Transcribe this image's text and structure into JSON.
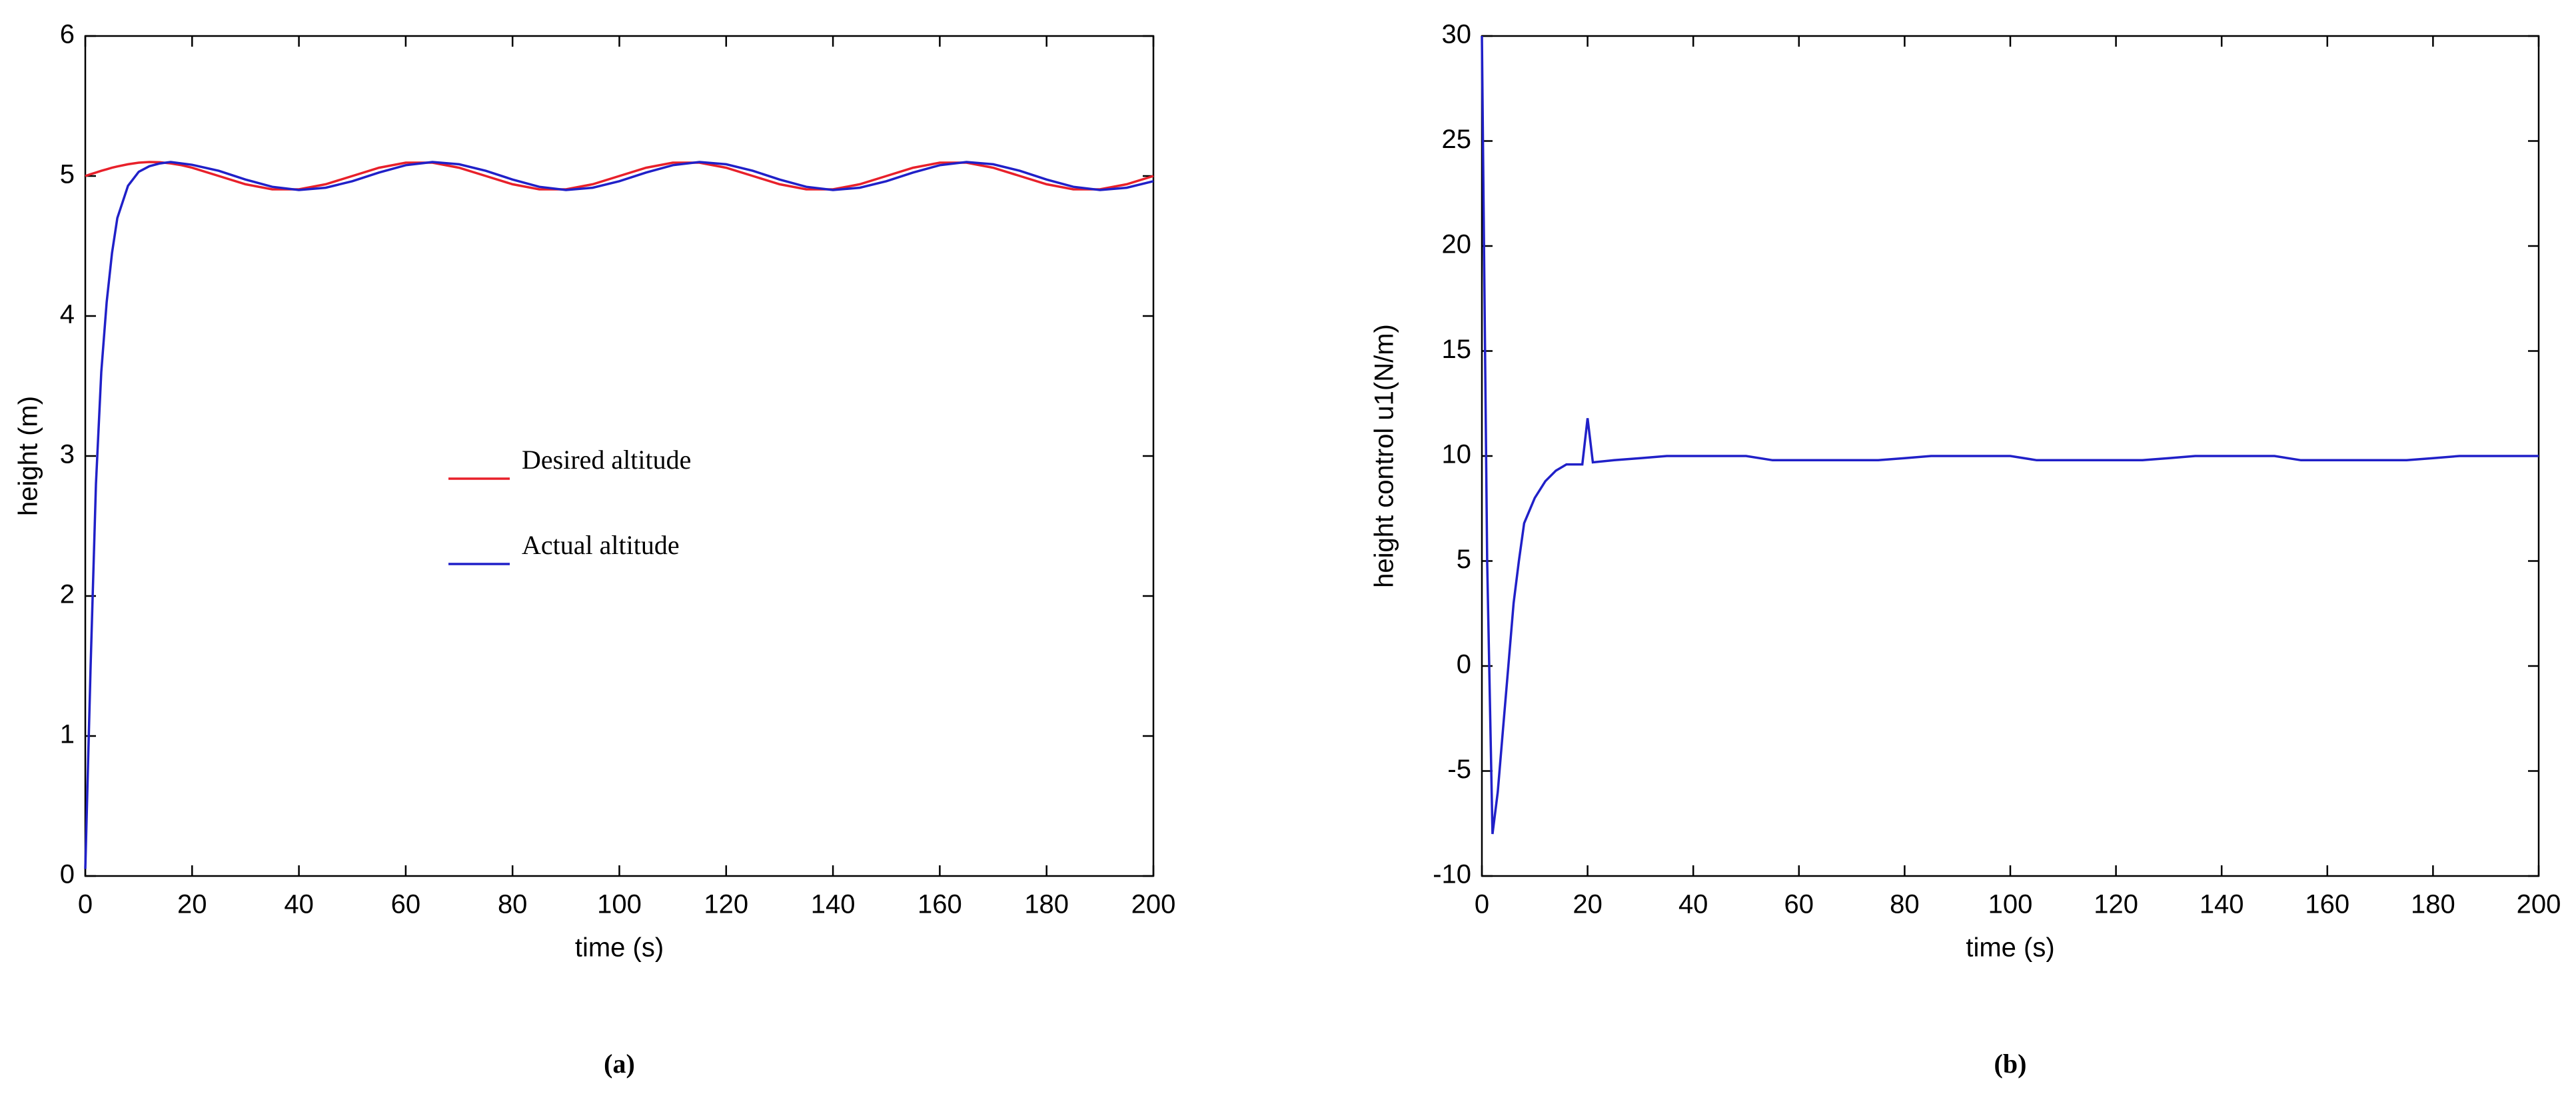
{
  "chart_data": [
    {
      "type": "line",
      "caption": "(a)",
      "xlabel": "time (s)",
      "ylabel": "height (m)",
      "x": [
        0,
        1,
        2,
        3,
        4,
        5,
        6,
        8,
        10,
        12,
        14,
        16,
        18,
        20,
        25,
        30,
        35,
        40,
        45,
        50,
        55,
        60,
        65,
        70,
        75,
        80,
        85,
        90,
        95,
        100,
        105,
        110,
        115,
        120,
        125,
        130,
        135,
        140,
        145,
        150,
        155,
        160,
        165,
        170,
        175,
        180,
        185,
        190,
        195,
        200
      ],
      "series": [
        {
          "name": "Desired altitude",
          "color": "#e8202a",
          "values": [
            5,
            5.013,
            5.025,
            5.037,
            5.048,
            5.059,
            5.068,
            5.084,
            5.095,
            5.1,
            5.098,
            5.09,
            5.077,
            5.059,
            5,
            4.941,
            4.905,
            4.905,
            4.941,
            5,
            5.059,
            5.095,
            5.095,
            5.059,
            5,
            4.941,
            4.905,
            4.905,
            4.941,
            5,
            5.059,
            5.095,
            5.095,
            5.059,
            5,
            4.941,
            4.905,
            4.905,
            4.941,
            5,
            5.059,
            5.095,
            5.095,
            5.059,
            5,
            4.941,
            4.905,
            4.905,
            4.941,
            5
          ]
        },
        {
          "name": "Actual altitude",
          "color": "#2020c8",
          "values": [
            0.05,
            1.5,
            2.8,
            3.6,
            4.1,
            4.45,
            4.7,
            4.93,
            5.03,
            5.07,
            5.09,
            5.1,
            5.09,
            5.08,
            5.037,
            4.975,
            4.923,
            4.9,
            4.916,
            4.963,
            5.025,
            5.077,
            5.1,
            5.084,
            5.037,
            4.975,
            4.923,
            4.9,
            4.916,
            4.963,
            5.025,
            5.077,
            5.1,
            5.084,
            5.037,
            4.975,
            4.923,
            4.9,
            4.916,
            4.963,
            5.025,
            5.077,
            5.1,
            5.084,
            5.037,
            4.975,
            4.923,
            4.9,
            4.916,
            4.963
          ]
        }
      ],
      "xlim": [
        0,
        200
      ],
      "xticks": [
        0,
        20,
        40,
        60,
        80,
        100,
        120,
        140,
        160,
        180,
        200
      ],
      "ylim": [
        0,
        6
      ],
      "yticks": [
        0,
        1,
        2,
        3,
        4,
        5,
        6
      ],
      "legend": "center"
    },
    {
      "type": "line",
      "caption": "(b)",
      "xlabel": "time (s)",
      "ylabel": "height control u1(N/m)",
      "x": [
        0,
        1,
        2,
        3,
        4,
        5,
        6,
        7,
        8,
        10,
        12,
        14,
        16,
        19,
        20,
        21,
        25,
        30,
        35,
        50,
        55,
        75,
        80,
        85,
        100,
        105,
        125,
        130,
        135,
        150,
        155,
        175,
        180,
        185,
        200
      ],
      "series": [
        {
          "color": "#2020c8",
          "values": [
            30,
            5,
            -8,
            -6,
            -3,
            0,
            3,
            5,
            6.8,
            8,
            8.8,
            9.3,
            9.6,
            9.6,
            11.8,
            9.7,
            9.8,
            9.9,
            10,
            10,
            9.8,
            9.8,
            9.9,
            10,
            10,
            9.8,
            9.8,
            9.9,
            10,
            10,
            9.8,
            9.8,
            9.9,
            10,
            10
          ]
        }
      ],
      "xlim": [
        0,
        200
      ],
      "xticks": [
        0,
        20,
        40,
        60,
        80,
        100,
        120,
        140,
        160,
        180,
        200
      ],
      "ylim": [
        -10,
        30
      ],
      "yticks": [
        -10,
        -5,
        0,
        5,
        10,
        15,
        20,
        25,
        30
      ]
    }
  ]
}
